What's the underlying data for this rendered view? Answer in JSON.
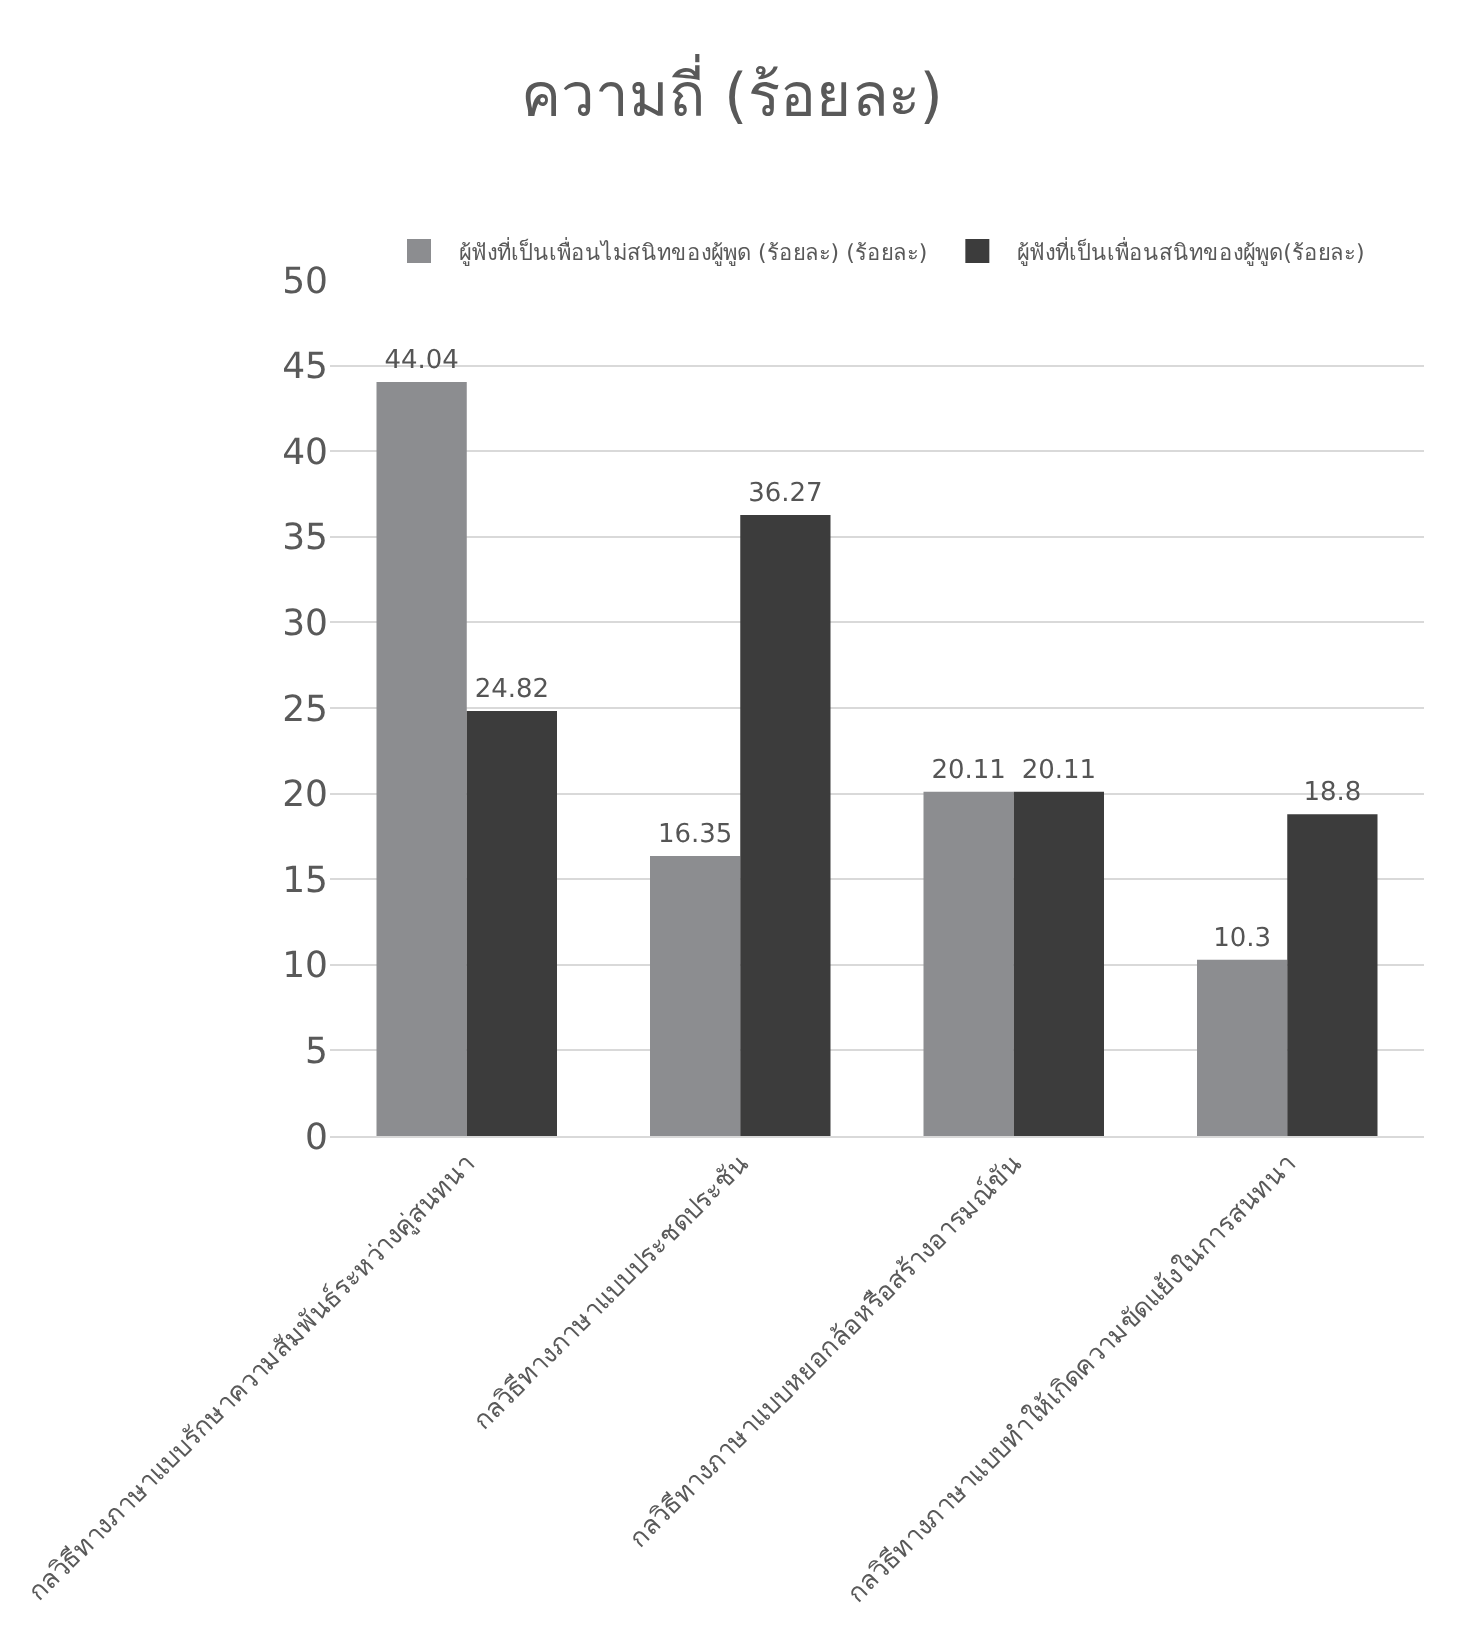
{
  "chart_data": {
    "type": "bar",
    "title": "ความถี่ (ร้อยละ)",
    "categories": [
      "กลวิธีทางภาษาแบบรักษาความสัมพันธ์ระหว่างคู่สนทนา",
      "กลวิธีทางภาษาแบบประชดประชัน",
      "กลวิธีทางภาษาแบบหยอกล้อหรือสร้างอารมณ์ขัน",
      "กลวิธีทางภาษาแบบทำให้เกิดความขัดแย้งในการสนทนา"
    ],
    "series": [
      {
        "name": "ผู้ฟังที่เป็นเพื่อนไม่สนิทของผู้พูด (ร้อยละ) (ร้อยละ)",
        "color": "#8c8d90",
        "values": [
          44.04,
          16.35,
          20.11,
          10.3
        ]
      },
      {
        "name": "ผู้ฟังที่เป็นเพื่อนสนิทของผู้พูด(ร้อยละ)",
        "color": "#3c3c3c",
        "values": [
          24.82,
          36.27,
          20.11,
          18.8
        ]
      }
    ],
    "ylim": [
      0,
      50
    ],
    "yticks": [
      0,
      5,
      10,
      15,
      20,
      25,
      30,
      35,
      40,
      45,
      50
    ],
    "grid": "y",
    "legend": "top",
    "data_labels": true
  }
}
